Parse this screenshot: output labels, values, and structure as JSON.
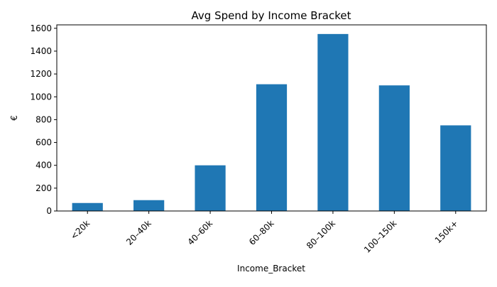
{
  "chart_data": {
    "type": "bar",
    "title": "Avg Spend by Income Bracket",
    "xlabel": "Income_Bracket",
    "ylabel": "€",
    "categories": [
      "<20k",
      "20–40k",
      "40–60k",
      "60–80k",
      "80–100k",
      "100–150k",
      "150k+"
    ],
    "values": [
      70,
      95,
      400,
      1110,
      1550,
      1100,
      750
    ],
    "ylim": [
      0,
      1630
    ],
    "yticks": [
      0,
      200,
      400,
      600,
      800,
      1000,
      1200,
      1400,
      1600
    ],
    "ytick_labels": [
      "0",
      "200",
      "400",
      "600",
      "800",
      "1000",
      "1200",
      "1400",
      "1600"
    ],
    "bar_color": "#1f77b4",
    "grid": false,
    "legend": "none",
    "xtick_rotation": 45
  }
}
